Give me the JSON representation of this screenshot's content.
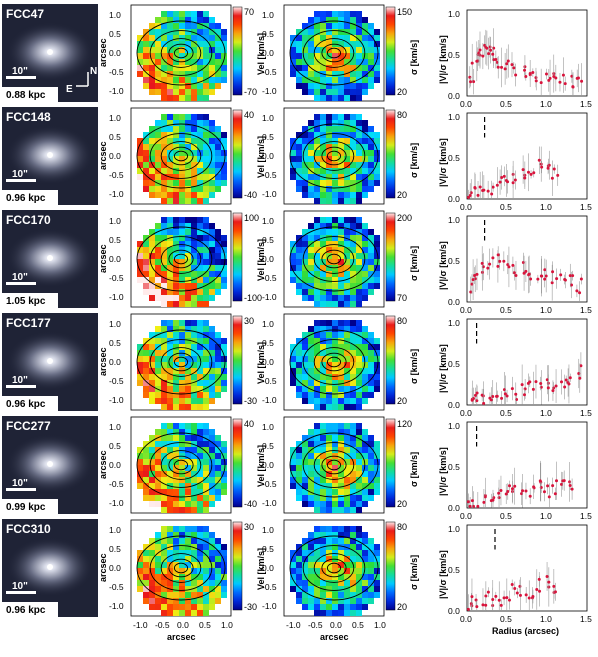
{
  "common": {
    "arcsec_label": "arcsec",
    "vel_label": "Vel [km/s]",
    "sigma_label": "σ [km/s]",
    "vsig_label": "|V|/σ [km/s]",
    "radius_label": "Radius (arcsec)",
    "scale_bar_label": "10\"",
    "compass_n": "N",
    "compass_e": "E",
    "map_ticks": [
      "-1.0",
      "-0.5",
      "0.0",
      "0.5",
      "1.0"
    ],
    "vsig_yticks": [
      "0.0",
      "0.5",
      "1.0"
    ],
    "radius_ticks": [
      "0.0",
      "0.5",
      "1.0",
      "1.5"
    ],
    "colors": {
      "point": "#d8143c",
      "errorbar": "#999999",
      "contour": "#000000"
    }
  },
  "galaxies": [
    {
      "name": "FCC47",
      "kpc": "0.88 kpc",
      "vel_lim": [
        "70",
        "-70"
      ],
      "sig_lim": [
        "150",
        "20"
      ]
    },
    {
      "name": "FCC148",
      "kpc": "0.96 kpc",
      "vel_lim": [
        "40",
        "-40"
      ],
      "sig_lim": [
        "80",
        "20"
      ]
    },
    {
      "name": "FCC170",
      "kpc": "1.05 kpc",
      "vel_lim": [
        "100",
        "-100"
      ],
      "sig_lim": [
        "200",
        "70"
      ]
    },
    {
      "name": "FCC177",
      "kpc": "0.96 kpc",
      "vel_lim": [
        "30",
        "-30"
      ],
      "sig_lim": [
        "80",
        "20"
      ]
    },
    {
      "name": "FCC277",
      "kpc": "0.99 kpc",
      "vel_lim": [
        "40",
        "-40"
      ],
      "sig_lim": [
        "120",
        "20"
      ]
    },
    {
      "name": "FCC310",
      "kpc": "0.96 kpc",
      "vel_lim": [
        "30",
        "-30"
      ],
      "sig_lim": [
        "80",
        "20"
      ]
    }
  ],
  "chart_data": [
    {
      "type": "scatter",
      "galaxy": "FCC47",
      "xlim": [
        0,
        1.5
      ],
      "ylim": [
        0,
        1
      ],
      "marker_x": null,
      "x": [
        0.05,
        0.1,
        0.15,
        0.2,
        0.25,
        0.3,
        0.35,
        0.4,
        0.5,
        0.6,
        0.7,
        0.8,
        0.9,
        1.0,
        1.1,
        1.2,
        1.3,
        1.4
      ],
      "y": [
        0.25,
        0.45,
        0.5,
        0.55,
        0.6,
        0.5,
        0.45,
        0.4,
        0.35,
        0.3,
        0.3,
        0.28,
        0.25,
        0.2,
        0.22,
        0.2,
        0.18,
        0.15
      ]
    },
    {
      "type": "scatter",
      "galaxy": "FCC148",
      "xlim": [
        0,
        1.5
      ],
      "ylim": [
        0,
        1
      ],
      "marker_x": 0.22,
      "x": [
        0.05,
        0.1,
        0.2,
        0.3,
        0.4,
        0.5,
        0.6,
        0.7,
        0.8,
        0.9,
        1.0,
        1.1
      ],
      "y": [
        0.05,
        0.1,
        0.12,
        0.15,
        0.2,
        0.2,
        0.22,
        0.3,
        0.35,
        0.4,
        0.42,
        0.3
      ]
    },
    {
      "type": "scatter",
      "galaxy": "FCC170",
      "xlim": [
        0,
        1.5
      ],
      "ylim": [
        0,
        1
      ],
      "marker_x": 0.22,
      "x": [
        0.05,
        0.1,
        0.2,
        0.3,
        0.4,
        0.5,
        0.6,
        0.7,
        0.8,
        0.9,
        1.0,
        1.1,
        1.2,
        1.3,
        1.4
      ],
      "y": [
        0.2,
        0.3,
        0.4,
        0.5,
        0.5,
        0.45,
        0.4,
        0.4,
        0.35,
        0.35,
        0.35,
        0.3,
        0.3,
        0.25,
        0.2
      ]
    },
    {
      "type": "scatter",
      "galaxy": "FCC177",
      "xlim": [
        0,
        1.5
      ],
      "ylim": [
        0,
        1
      ],
      "marker_x": 0.12,
      "x": [
        0.05,
        0.1,
        0.2,
        0.3,
        0.4,
        0.5,
        0.6,
        0.7,
        0.8,
        0.9,
        1.0,
        1.1,
        1.2,
        1.3,
        1.4
      ],
      "y": [
        0.05,
        0.08,
        0.1,
        0.12,
        0.15,
        0.18,
        0.15,
        0.2,
        0.2,
        0.2,
        0.22,
        0.25,
        0.3,
        0.3,
        0.4
      ]
    },
    {
      "type": "scatter",
      "galaxy": "FCC277",
      "xlim": [
        0,
        1.5
      ],
      "ylim": [
        0,
        1
      ],
      "marker_x": 0.12,
      "x": [
        0.05,
        0.1,
        0.2,
        0.3,
        0.4,
        0.5,
        0.6,
        0.7,
        0.8,
        0.9,
        1.0,
        1.1,
        1.2,
        1.3
      ],
      "y": [
        0.05,
        0.05,
        0.08,
        0.1,
        0.15,
        0.2,
        0.18,
        0.2,
        0.2,
        0.25,
        0.2,
        0.25,
        0.3,
        0.25
      ]
    },
    {
      "type": "scatter",
      "galaxy": "FCC310",
      "xlim": [
        0,
        1.5
      ],
      "ylim": [
        0,
        1
      ],
      "marker_x": 0.35,
      "x": [
        0.05,
        0.1,
        0.2,
        0.3,
        0.4,
        0.5,
        0.6,
        0.7,
        0.8,
        0.9,
        1.0,
        1.1
      ],
      "y": [
        0.05,
        0.1,
        0.12,
        0.15,
        0.15,
        0.2,
        0.25,
        0.25,
        0.2,
        0.3,
        0.35,
        0.3
      ]
    }
  ]
}
